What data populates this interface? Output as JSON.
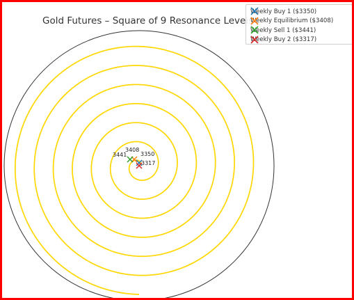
{
  "chart_data": {
    "type": "scatter",
    "title": "Gold Futures – Square of 9 Resonance Levels",
    "xlabel": "",
    "ylabel": "",
    "grid": false,
    "legend_position": "top-right",
    "spiral": {
      "color": "#ffd700",
      "turns": 6.75,
      "description_level_max": 3441
    },
    "outer_circle_color": "#333333",
    "series": [
      {
        "name": "Weekly Buy 1 ($3350)",
        "value": 3350,
        "label": "3350",
        "marker": "x",
        "color": "#1f77b4"
      },
      {
        "name": "Weekly Equilibrium ($3408)",
        "value": 3408,
        "label": "3408",
        "marker": "x",
        "color": "#ff7f0e"
      },
      {
        "name": "Weekly Sell 1 ($3441)",
        "value": 3441,
        "label": "3441",
        "marker": "x",
        "color": "#2ca02c"
      },
      {
        "name": "Weekly Buy 2 ($3317)",
        "value": 3317,
        "label": "3317",
        "marker": "x",
        "color": "#d62728"
      }
    ]
  }
}
